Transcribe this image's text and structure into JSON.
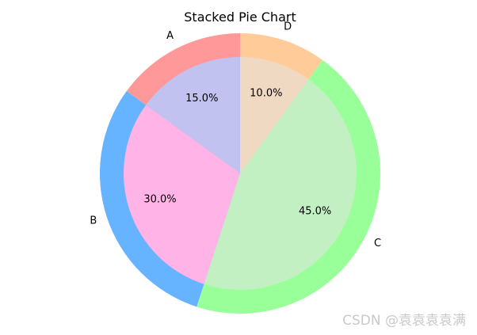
{
  "chart_data": {
    "type": "pie",
    "title": "Stacked Pie Chart",
    "outer": {
      "labels": [
        "A",
        "B",
        "C",
        "D"
      ],
      "values": [
        15,
        30,
        45,
        10
      ],
      "colors": [
        "#ff9999",
        "#66b3ff",
        "#99ff99",
        "#ffcc99"
      ]
    },
    "inner": {
      "values": [
        15,
        30,
        45,
        10
      ],
      "percent_labels": [
        "15.0%",
        "30.0%",
        "45.0%",
        "10.0%"
      ],
      "colors": [
        "#c2c2f0",
        "#ffb3e6",
        "#c2f0c2",
        "#f0d9c2"
      ]
    },
    "start_angle_deg": 90,
    "direction": "counterclockwise"
  },
  "watermark": "CSDN @袁袁袁袁满"
}
